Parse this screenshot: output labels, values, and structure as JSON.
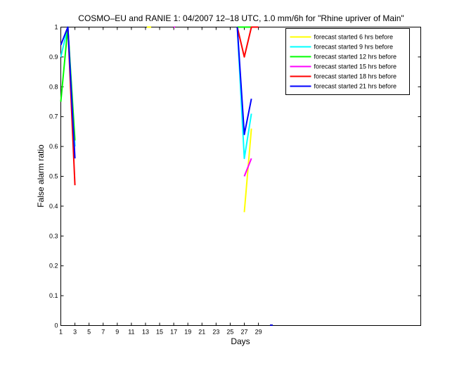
{
  "chart_data": {
    "type": "line",
    "title": "COSMO–EU and RANIE 1: 04/2007 12–18 UTC, 1.0 mm/6h for \"Rhine upriver of Main\"",
    "xlabel": "Days",
    "ylabel": "False alarm ratio",
    "xlim": [
      1,
      52
    ],
    "ylim": [
      0,
      1
    ],
    "xticks": [
      1,
      3,
      5,
      7,
      9,
      11,
      13,
      15,
      17,
      19,
      21,
      23,
      25,
      27,
      29
    ],
    "yticks": [
      0,
      0.1,
      0.2,
      0.3,
      0.4,
      0.5,
      0.6,
      0.7,
      0.8,
      0.9,
      1
    ],
    "ytick_labels": [
      "0",
      "0.1",
      "0.2",
      "0.3",
      "0.4",
      "0.5",
      "0.6",
      "0.7",
      "0.8",
      "0.9",
      "1"
    ],
    "grid": false,
    "legend_position": "top-right",
    "series": [
      {
        "name": "forecast started 6 hrs before",
        "color": "#ffff00",
        "segments": [
          [
            [
              13.2,
              1
            ],
            [
              13.8,
              1
            ]
          ],
          [
            [
              27,
              0.38
            ],
            [
              28,
              0.66
            ]
          ]
        ]
      },
      {
        "name": "forecast started 9 hrs before",
        "color": "#00ffff",
        "segments": [
          [
            [
              1,
              0.9
            ],
            [
              2,
              1
            ],
            [
              3,
              0.6
            ]
          ],
          [
            [
              26,
              1
            ],
            [
              27,
              0.56
            ],
            [
              28,
              0.71
            ]
          ]
        ]
      },
      {
        "name": "forecast started 12 hrs before",
        "color": "#00ff00",
        "segments": [
          [
            [
              1,
              0.75
            ],
            [
              2,
              1
            ],
            [
              3,
              0.62
            ]
          ],
          [
            [
              26,
              1
            ],
            [
              27,
              1
            ],
            [
              28,
              1
            ]
          ]
        ]
      },
      {
        "name": "forecast started 15 hrs before",
        "color": "#ff00ff",
        "segments": [
          [
            [
              17,
              1
            ],
            [
              17.2,
              1
            ]
          ],
          [
            [
              27,
              0.5
            ],
            [
              28,
              0.56
            ]
          ]
        ]
      },
      {
        "name": "forecast started 18 hrs before",
        "color": "#ff0000",
        "segments": [
          [
            [
              2,
              1
            ],
            [
              3,
              0.47
            ]
          ],
          [
            [
              26,
              1
            ],
            [
              27,
              0.9
            ],
            [
              28,
              1
            ],
            [
              29,
              1
            ]
          ]
        ]
      },
      {
        "name": "forecast started 21 hrs before",
        "color": "#0000ff",
        "segments": [
          [
            [
              1,
              0.94
            ],
            [
              2,
              1
            ],
            [
              3,
              0.56
            ]
          ],
          [
            [
              26,
              1
            ],
            [
              27,
              0.64
            ],
            [
              28,
              0.76
            ]
          ]
        ]
      }
    ]
  }
}
